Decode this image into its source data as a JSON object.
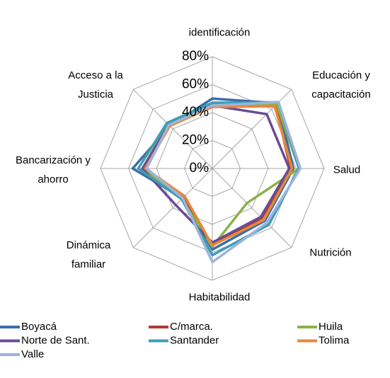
{
  "chart_data": {
    "type": "radar",
    "categories": [
      "identificación",
      "Educación y capacitación",
      "Salud",
      "Nutrición",
      "Habitabilidad",
      "Dinámica familiar",
      "Bancarización y ahorro",
      "Acceso a la Justicia"
    ],
    "series": [
      {
        "name": "Boyacá",
        "color": "#3a6ea8",
        "values": [
          50,
          66,
          58,
          53,
          58,
          30,
          57,
          43
        ]
      },
      {
        "name": "C/marca.",
        "color": "#b03a36",
        "values": [
          45,
          64,
          56,
          50,
          55,
          29,
          48,
          44
        ]
      },
      {
        "name": "Huila",
        "color": "#8fb04a",
        "values": [
          46,
          65,
          62,
          35,
          56,
          31,
          50,
          45
        ]
      },
      {
        "name": "Norte de Sant.",
        "color": "#6a4c93",
        "values": [
          45,
          55,
          55,
          49,
          53,
          37,
          50,
          44
        ]
      },
      {
        "name": "Santander",
        "color": "#3b9db6",
        "values": [
          47,
          67,
          62,
          57,
          62,
          31,
          53,
          46
        ]
      },
      {
        "name": "Tolima",
        "color": "#e6883a",
        "values": [
          44,
          63,
          57,
          52,
          55,
          28,
          48,
          43
        ]
      },
      {
        "name": "Valle",
        "color": "#9fb3dc",
        "values": [
          45,
          67,
          63,
          55,
          67,
          30,
          47,
          44
        ]
      }
    ],
    "ylim": [
      0,
      80
    ],
    "yticks": [
      {
        "value": 0,
        "label": "0%"
      },
      {
        "value": 20,
        "label": "20%"
      },
      {
        "value": 40,
        "label": "40%"
      },
      {
        "value": 60,
        "label": "60%"
      },
      {
        "value": 80,
        "label": "80%"
      }
    ],
    "grid": true,
    "legend": "bottom"
  }
}
